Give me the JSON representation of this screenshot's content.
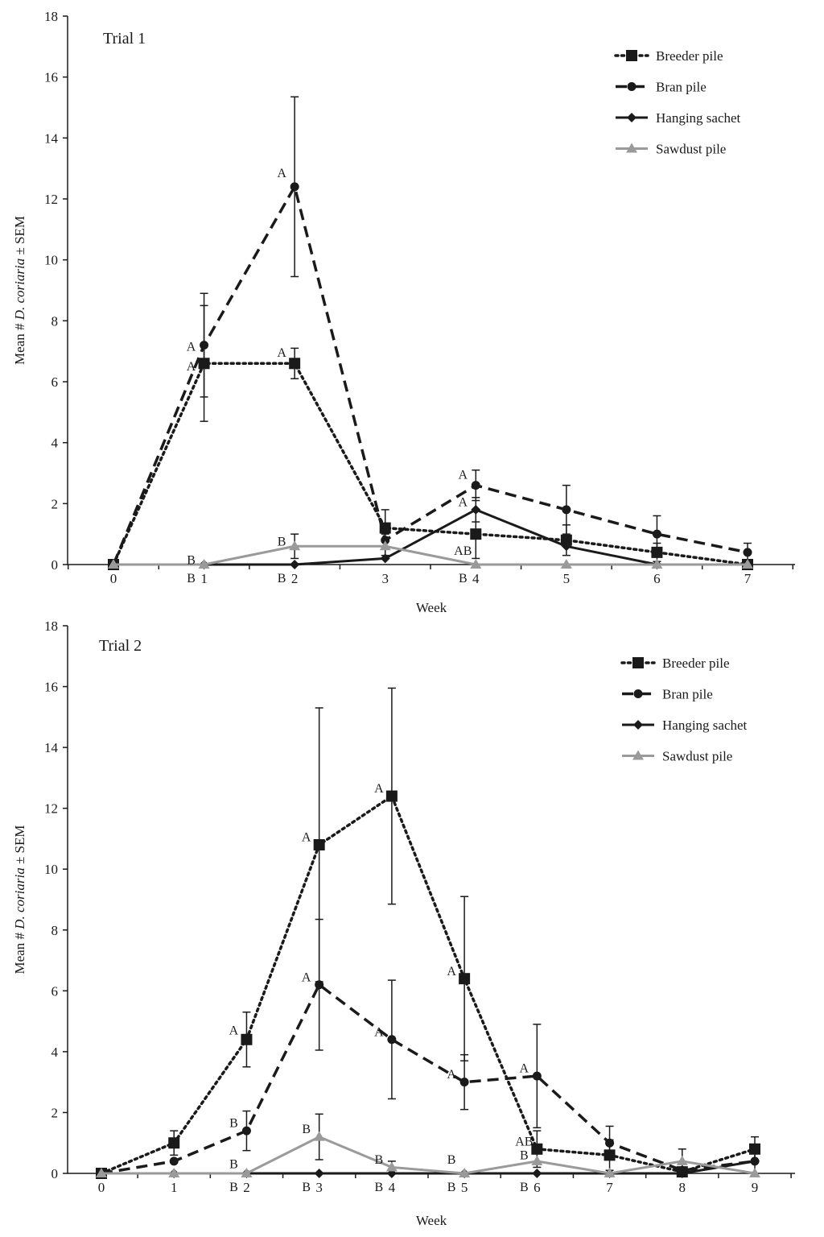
{
  "chart_data": [
    {
      "type": "line",
      "title": "Trial 1",
      "xlabel": "Week",
      "ylabel_prefix": "Mean # ",
      "ylabel_italic": "D. coriaria",
      "ylabel_suffix": " ± SEM",
      "x": [
        0,
        1,
        2,
        3,
        4,
        5,
        6,
        7
      ],
      "xlim": [
        0,
        7
      ],
      "ylim": [
        0,
        18
      ],
      "yticks": [
        0,
        2,
        4,
        6,
        8,
        10,
        12,
        14,
        16,
        18
      ],
      "legend": "top-right",
      "series": [
        {
          "name": "Breeder pile",
          "style": "dotted",
          "marker": "square",
          "color": "#1a1a1a",
          "values": [
            0,
            6.6,
            6.6,
            1.2,
            1.0,
            0.8,
            0.4,
            0
          ],
          "errors": [
            0,
            1.9,
            0.5,
            0.6,
            0.8,
            0.5,
            0.3,
            0
          ]
        },
        {
          "name": "Bran pile",
          "style": "dashed",
          "marker": "circle",
          "color": "#1a1a1a",
          "values": [
            0,
            7.2,
            12.4,
            0.8,
            2.6,
            1.8,
            1.0,
            0.4
          ],
          "errors": [
            0,
            1.7,
            2.95,
            0.5,
            0.5,
            0.8,
            0.6,
            0.3
          ]
        },
        {
          "name": "Hanging sachet",
          "style": "solid",
          "marker": "diamond",
          "color": "#1a1a1a",
          "values": [
            0,
            0,
            0,
            0.2,
            1.8,
            0.6,
            0,
            0
          ],
          "errors": [
            0,
            0,
            0,
            0,
            0.4,
            0,
            0,
            0
          ]
        },
        {
          "name": "Sawdust pile",
          "style": "solid",
          "marker": "triangle",
          "color": "#9a9a9a",
          "values": [
            0,
            0,
            0.6,
            0.6,
            0,
            0,
            0,
            0
          ],
          "errors": [
            0,
            0,
            0.4,
            0.4,
            0,
            0,
            0,
            0
          ]
        }
      ],
      "annotations": [
        {
          "text": "A",
          "x": 1,
          "y": 7.15
        },
        {
          "text": "A",
          "x": 1,
          "y": 6.5
        },
        {
          "text": "A",
          "x": 2,
          "y": 12.85
        },
        {
          "text": "A",
          "x": 2,
          "y": 6.95
        },
        {
          "text": "B",
          "x": 1,
          "y": 0.15
        },
        {
          "text": "B",
          "x": 1,
          "y": -0.45
        },
        {
          "text": "B",
          "x": 2,
          "y": 0.75
        },
        {
          "text": "B",
          "x": 2,
          "y": -0.45
        },
        {
          "text": "A",
          "x": 4,
          "y": 2.95
        },
        {
          "text": "A",
          "x": 4,
          "y": 2.05
        },
        {
          "text": "AB",
          "x": 4,
          "y": 0.45
        },
        {
          "text": "B",
          "x": 4,
          "y": -0.45
        }
      ]
    },
    {
      "type": "line",
      "title": "Trial 2",
      "xlabel": "Week",
      "ylabel_prefix": "Mean # ",
      "ylabel_italic": "D. coriaria",
      "ylabel_suffix": " ± SEM",
      "x": [
        0,
        1,
        2,
        3,
        4,
        5,
        6,
        7,
        8,
        9
      ],
      "xlim": [
        0,
        9
      ],
      "ylim": [
        0,
        18
      ],
      "yticks": [
        0,
        2,
        4,
        6,
        8,
        10,
        12,
        14,
        16,
        18
      ],
      "legend": "top-right",
      "series": [
        {
          "name": "Breeder pile",
          "style": "dotted",
          "marker": "square",
          "color": "#1a1a1a",
          "values": [
            0,
            1.0,
            4.4,
            10.8,
            12.4,
            6.4,
            0.8,
            0.6,
            0.05,
            0.8
          ],
          "errors": [
            0,
            0.4,
            0.9,
            4.5,
            3.55,
            2.7,
            0.6,
            0.5,
            0,
            0.4
          ]
        },
        {
          "name": "Bran pile",
          "style": "dashed",
          "marker": "circle",
          "color": "#1a1a1a",
          "values": [
            0,
            0.4,
            1.4,
            6.2,
            4.4,
            3.0,
            3.2,
            1.0,
            0.1,
            0.4
          ],
          "errors": [
            0,
            0,
            0.65,
            2.15,
            1.95,
            0.9,
            1.7,
            0.55,
            0,
            0.4
          ]
        },
        {
          "name": "Hanging sachet",
          "style": "solid",
          "marker": "diamond",
          "color": "#1a1a1a",
          "values": [
            0,
            0,
            0,
            0,
            0,
            0,
            0,
            0,
            0,
            0.4
          ],
          "errors": [
            0,
            0,
            0,
            0,
            0,
            0,
            0,
            0,
            0,
            0
          ]
        },
        {
          "name": "Sawdust pile",
          "style": "solid",
          "marker": "triangle",
          "color": "#9a9a9a",
          "values": [
            0,
            0,
            0,
            1.2,
            0.2,
            0,
            0.4,
            0,
            0.4,
            0
          ],
          "errors": [
            0,
            0,
            0,
            0.75,
            0.2,
            0,
            0,
            0,
            0.4,
            0
          ]
        }
      ],
      "annotations": [
        {
          "text": "A",
          "x": 2,
          "y": 4.7
        },
        {
          "text": "B",
          "x": 2,
          "y": 1.65
        },
        {
          "text": "B",
          "x": 2,
          "y": 0.3
        },
        {
          "text": "B",
          "x": 2,
          "y": -0.45
        },
        {
          "text": "A",
          "x": 3,
          "y": 11.05
        },
        {
          "text": "A",
          "x": 3,
          "y": 6.45
        },
        {
          "text": "B",
          "x": 3,
          "y": 1.45
        },
        {
          "text": "B",
          "x": 3,
          "y": -0.45
        },
        {
          "text": "A",
          "x": 4,
          "y": 12.65
        },
        {
          "text": "A",
          "x": 4,
          "y": 4.65
        },
        {
          "text": "B",
          "x": 4,
          "y": 0.45
        },
        {
          "text": "B",
          "x": 4,
          "y": -0.45
        },
        {
          "text": "A",
          "x": 5,
          "y": 6.65
        },
        {
          "text": "A",
          "x": 5,
          "y": 3.25
        },
        {
          "text": "B",
          "x": 5,
          "y": 0.45
        },
        {
          "text": "B",
          "x": 5,
          "y": -0.45
        },
        {
          "text": "A",
          "x": 6,
          "y": 3.45
        },
        {
          "text": "AB",
          "x": 6,
          "y": 1.05
        },
        {
          "text": "B",
          "x": 6,
          "y": 0.6
        },
        {
          "text": "B",
          "x": 6,
          "y": -0.45
        }
      ]
    }
  ]
}
